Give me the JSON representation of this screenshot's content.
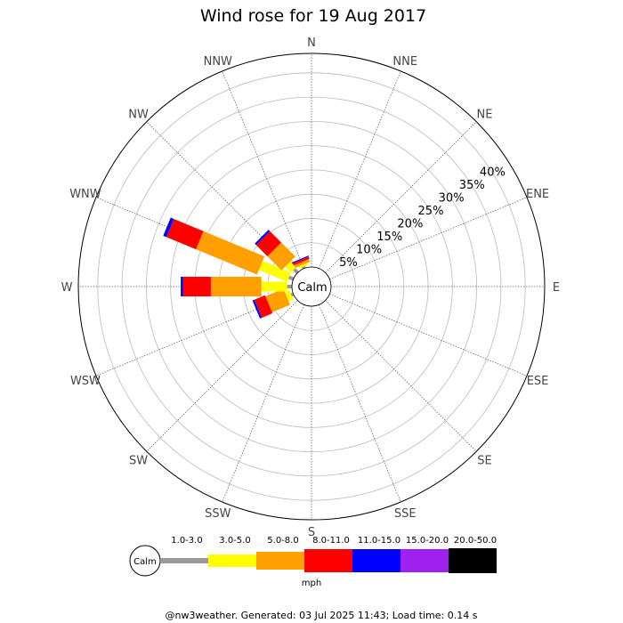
{
  "title": "Wind rose for 19 Aug 2017",
  "calm_label": "Calm",
  "unit_label": "mph",
  "footer": "@nw3weather. Generated: 03 Jul 2025 11:43; Load time: 0.14 s",
  "chart_data": {
    "type": "wind-rose",
    "title": "Wind rose for 19 Aug 2017",
    "unit": "mph",
    "radial_scale_percent": [
      5,
      10,
      15,
      20,
      25,
      30,
      35,
      40
    ],
    "radial_max_percent": 44,
    "directions": [
      "N",
      "NNE",
      "NE",
      "ENE",
      "E",
      "ESE",
      "SE",
      "SSE",
      "S",
      "SSW",
      "SW",
      "WSW",
      "W",
      "WNW",
      "NW",
      "NNW"
    ],
    "speed_bins": [
      {
        "label": "1.0-3.0",
        "color": "#999999"
      },
      {
        "label": "3.0-5.0",
        "color": "#ffff00"
      },
      {
        "label": "5.0-8.0",
        "color": "#ffa000"
      },
      {
        "label": "8.0-11.0",
        "color": "#ff0000"
      },
      {
        "label": "11.0-15.0",
        "color": "#0000ff"
      },
      {
        "label": "15.0-20.0",
        "color": "#a020f0"
      },
      {
        "label": "20.0-50.0",
        "color": "#000000"
      }
    ],
    "series_by_direction": {
      "N": [
        0,
        0,
        0,
        0,
        0,
        0,
        0
      ],
      "NNE": [
        0,
        0,
        0,
        0,
        0,
        0,
        0
      ],
      "NE": [
        0,
        0,
        0,
        0,
        0,
        0,
        0
      ],
      "ENE": [
        0,
        0,
        0,
        0,
        0,
        0,
        0
      ],
      "E": [
        0,
        0,
        0,
        0,
        0,
        0,
        0
      ],
      "ESE": [
        0,
        0,
        0,
        0,
        0,
        0,
        0
      ],
      "SE": [
        0,
        0,
        0,
        0,
        0,
        0,
        0
      ],
      "SSE": [
        0,
        0,
        0,
        0,
        0,
        0,
        0
      ],
      "S": [
        0,
        0,
        0,
        0,
        0,
        0,
        0
      ],
      "SSW": [
        0,
        0,
        0,
        0,
        0,
        0,
        0
      ],
      "SW": [
        0,
        0,
        0,
        0,
        0,
        0,
        0
      ],
      "WSW": [
        0.5,
        1.0,
        4.0,
        2.4,
        0.4,
        0,
        0
      ],
      "W": [
        1.0,
        5.3,
        10.4,
        5.7,
        0.5,
        0,
        0
      ],
      "WNW": [
        1.0,
        6.3,
        13.6,
        6.6,
        0.7,
        0,
        0
      ],
      "NW": [
        1.0,
        1.7,
        4.1,
        3.3,
        0.4,
        0,
        0
      ],
      "NNW": [
        0.4,
        0.4,
        0.6,
        0.5,
        0.2,
        0,
        0
      ]
    }
  }
}
